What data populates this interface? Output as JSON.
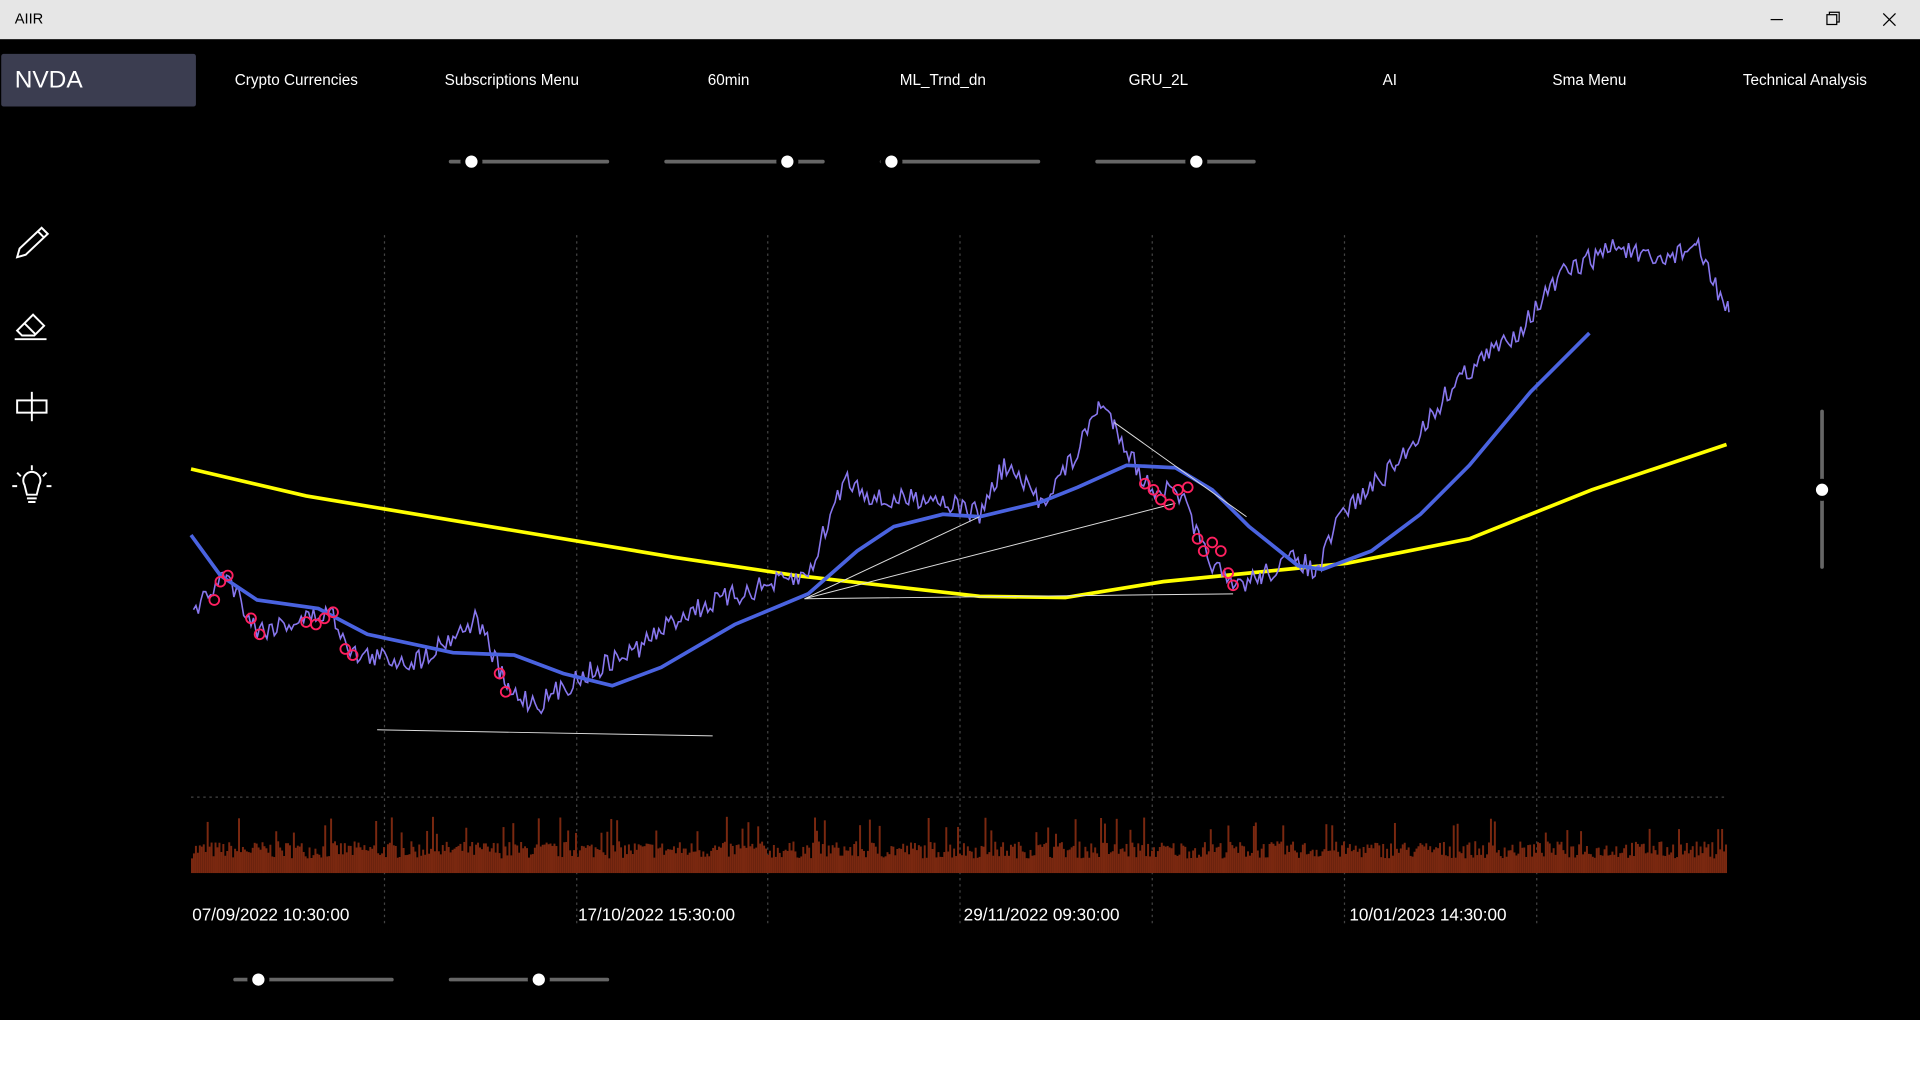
{
  "window": {
    "title": "AIIR"
  },
  "symbol": "NVDA",
  "menu": [
    "Crypto Currencies",
    "Subscriptions Menu",
    "60min",
    "ML_Trnd_dn",
    "GRU_2L",
    "AI",
    "Sma Menu",
    "Technical Analysis"
  ],
  "chart": {
    "x_labels": [
      "07/09/2022 10:30:00",
      "17/10/2022 15:30:00",
      "29/11/2022 09:30:00",
      "10/01/2023 14:30:00"
    ]
  }
}
